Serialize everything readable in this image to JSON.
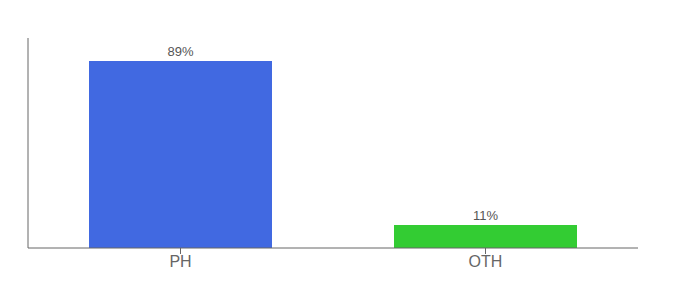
{
  "chart_data": {
    "type": "bar",
    "categories": [
      "PH",
      "OTH"
    ],
    "values": [
      89,
      11
    ],
    "value_labels": [
      "89%",
      "11%"
    ],
    "colors": [
      "#4169e1",
      "#33cc33"
    ],
    "ylim": [
      0,
      100
    ],
    "data_labels": true,
    "tick_labels": "x",
    "grid": false
  }
}
